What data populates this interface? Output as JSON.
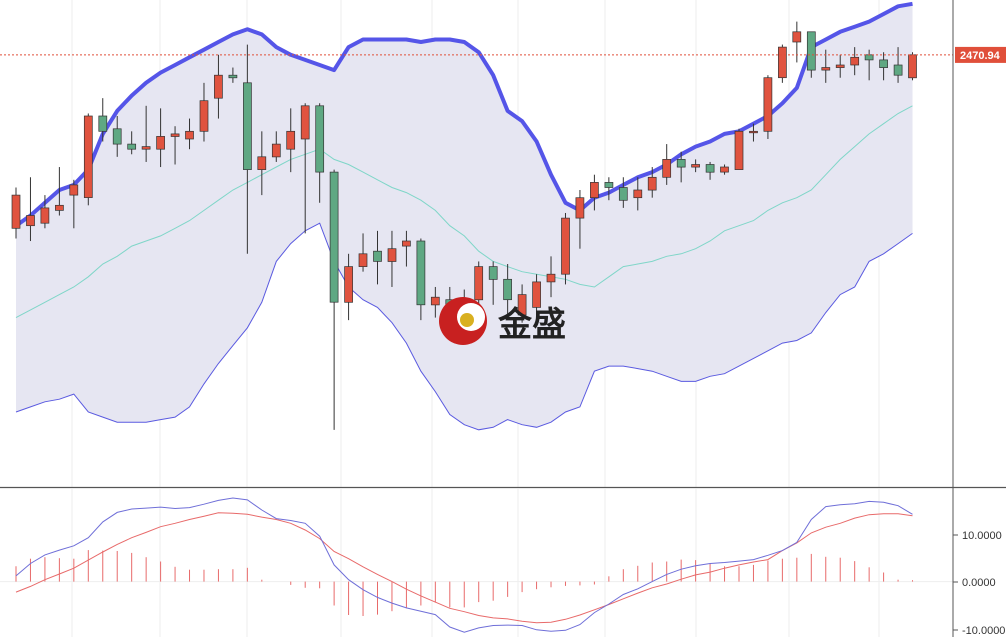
{
  "watermark": {
    "text": "金盛"
  },
  "price_tag": {
    "label": "2470.94",
    "value": 2470.94,
    "color": "#e04f3a"
  },
  "colors": {
    "up": "#e0533f",
    "down": "#5fa883",
    "band_fill": "#e6e6f2",
    "upper_band": "#5555e8",
    "lower_band": "#5a5ae0",
    "mid_band": "#7fd6c8",
    "macd_line": "#6f6fd8",
    "signal_line": "#e86a6a",
    "hist": "#e86a6a"
  },
  "chart_data": [
    {
      "type": "candlestick",
      "title": "",
      "xlabel": "",
      "ylabel": "",
      "ylim": [
        2301.6,
        2492.47
      ],
      "grid": true,
      "current_price": 2470.94,
      "candles": [
        [
          0,
          2403,
          2416,
          2419,
          2399
        ],
        [
          1,
          2404,
          2408,
          2423,
          2398
        ],
        [
          2,
          2405,
          2411,
          2416,
          2403
        ],
        [
          3,
          2410,
          2412,
          2427,
          2408
        ],
        [
          4,
          2416,
          2420,
          2422,
          2403
        ],
        [
          5,
          2415,
          2447,
          2448,
          2412
        ],
        [
          6,
          2447,
          2441,
          2454,
          2437
        ],
        [
          7,
          2442,
          2436,
          2447,
          2431
        ],
        [
          8,
          2436,
          2434,
          2441,
          2432
        ],
        [
          9,
          2434,
          2435,
          2451,
          2429
        ],
        [
          10,
          2434,
          2439,
          2450,
          2427
        ],
        [
          11,
          2439,
          2440,
          2443,
          2428
        ],
        [
          12,
          2438,
          2441,
          2446,
          2434
        ],
        [
          13,
          2441,
          2453,
          2460,
          2437
        ],
        [
          14,
          2454,
          2463,
          2471,
          2446
        ],
        [
          15,
          2463,
          2462,
          2466,
          2460
        ],
        [
          16,
          2460,
          2426,
          2475,
          2393
        ],
        [
          17,
          2426,
          2431,
          2441,
          2416
        ],
        [
          18,
          2431,
          2436,
          2441,
          2429
        ],
        [
          19,
          2434,
          2441,
          2450,
          2425
        ],
        [
          20,
          2438,
          2451,
          2452,
          2401
        ],
        [
          21,
          2451,
          2425,
          2452,
          2413
        ],
        [
          22,
          2425,
          2374,
          2426,
          2324
        ],
        [
          23,
          2374,
          2388,
          2393,
          2367
        ],
        [
          24,
          2388,
          2393,
          2401,
          2386
        ],
        [
          25,
          2394,
          2390,
          2402,
          2381
        ],
        [
          26,
          2390,
          2395,
          2402,
          2380
        ],
        [
          27,
          2396,
          2398,
          2402,
          2388
        ],
        [
          28,
          2398,
          2373,
          2399,
          2367
        ],
        [
          29,
          2373,
          2376,
          2380,
          2368
        ],
        [
          30,
          2375,
          2366,
          2380,
          2362
        ],
        [
          31,
          2366,
          2373,
          2379,
          2362
        ],
        [
          32,
          2375,
          2388,
          2390,
          2373
        ],
        [
          33,
          2388,
          2383,
          2390,
          2373
        ],
        [
          34,
          2383,
          2375,
          2389,
          2368
        ],
        [
          35,
          2369,
          2377,
          2381,
          2366
        ],
        [
          36,
          2372,
          2382,
          2385,
          2367
        ],
        [
          37,
          2382,
          2385,
          2392,
          2376
        ],
        [
          38,
          2385,
          2407,
          2409,
          2381
        ],
        [
          39,
          2407,
          2415,
          2418,
          2395
        ],
        [
          40,
          2415,
          2421,
          2424,
          2410
        ],
        [
          41,
          2421,
          2419,
          2423,
          2414
        ],
        [
          42,
          2419,
          2414,
          2423,
          2411
        ],
        [
          43,
          2415,
          2418,
          2423,
          2410
        ],
        [
          44,
          2418,
          2423,
          2427,
          2415
        ],
        [
          45,
          2423,
          2430,
          2436,
          2420
        ],
        [
          46,
          2430,
          2427,
          2433,
          2421
        ],
        [
          47,
          2427,
          2428,
          2430,
          2425
        ],
        [
          48,
          2428,
          2425,
          2429,
          2422
        ],
        [
          49,
          2425,
          2427,
          2428,
          2424
        ],
        [
          50,
          2426,
          2441,
          2442,
          2426
        ],
        [
          51,
          2441,
          2441,
          2444,
          2437
        ],
        [
          52,
          2441,
          2462,
          2463,
          2438
        ],
        [
          53,
          2462,
          2474,
          2475,
          2460
        ],
        [
          54,
          2476,
          2480,
          2484,
          2468
        ],
        [
          55,
          2480,
          2465,
          2480,
          2462
        ],
        [
          56,
          2465,
          2466,
          2473,
          2460
        ],
        [
          57,
          2466,
          2467,
          2471,
          2462
        ],
        [
          58,
          2467,
          2470,
          2474,
          2463
        ],
        [
          59,
          2471,
          2469,
          2473,
          2461
        ],
        [
          60,
          2469,
          2466,
          2472,
          2461
        ],
        [
          61,
          2467,
          2463,
          2474,
          2460
        ],
        [
          62,
          2462,
          2471,
          2472,
          2461
        ]
      ],
      "bollinger": {
        "upper": [
          2404,
          2408,
          2413,
          2418,
          2420,
          2426,
          2440,
          2449,
          2455,
          2460,
          2464,
          2467,
          2470,
          2473,
          2476,
          2479,
          2481,
          2479,
          2474,
          2471,
          2469,
          2467,
          2465,
          2474,
          2477,
          2477,
          2477,
          2477,
          2476,
          2477,
          2477,
          2476,
          2472,
          2463,
          2449,
          2445,
          2437,
          2424,
          2413,
          2410,
          2415,
          2417,
          2420,
          2423,
          2425,
          2428,
          2432,
          2435,
          2437,
          2440,
          2441,
          2444,
          2447,
          2452,
          2458,
          2474,
          2477,
          2480,
          2482,
          2484,
          2487,
          2490,
          2491
        ],
        "middle": [
          2368,
          2371,
          2374,
          2377,
          2380,
          2384,
          2389,
          2392,
          2396,
          2398,
          2400,
          2403,
          2406,
          2410,
          2414,
          2418,
          2421,
          2424,
          2427,
          2430,
          2432,
          2434,
          2430,
          2428,
          2425,
          2422,
          2419,
          2417,
          2414,
          2410,
          2404,
          2400,
          2394,
          2390,
          2388,
          2386,
          2385,
          2384,
          2383,
          2381,
          2380,
          2384,
          2388,
          2389,
          2390,
          2392,
          2393,
          2395,
          2398,
          2402,
          2404,
          2406,
          2410,
          2413,
          2415,
          2418,
          2424,
          2430,
          2435,
          2440,
          2444,
          2448,
          2451
        ],
        "lower": [
          2331,
          2333,
          2335,
          2336,
          2338,
          2331,
          2329,
          2327,
          2327,
          2327,
          2328,
          2329,
          2333,
          2342,
          2350,
          2357,
          2364,
          2374,
          2390,
          2397,
          2402,
          2405,
          2390,
          2380,
          2375,
          2372,
          2366,
          2358,
          2347,
          2339,
          2330,
          2326,
          2324,
          2325,
          2328,
          2326,
          2325,
          2327,
          2331,
          2333,
          2347,
          2349,
          2349,
          2348,
          2347,
          2345,
          2343,
          2343,
          2345,
          2346,
          2349,
          2352,
          2355,
          2358,
          2359,
          2362,
          2370,
          2377,
          2380,
          2390,
          2393,
          2397,
          2401
        ]
      }
    },
    {
      "type": "line",
      "title": "",
      "ylim": [
        -11.6,
        19.6
      ],
      "yticks": [
        "-10.0000",
        "0.0000",
        "10.0000"
      ],
      "grid": true,
      "series": [
        {
          "values": [
            1.2,
            3.8,
            5.6,
            6.6,
            7.5,
            9.2,
            12.5,
            14.5,
            15.2,
            15.4,
            15.6,
            15.3,
            15.5,
            16.2,
            17.0,
            17.5,
            17.1,
            15.0,
            13.2,
            12.8,
            12.2,
            9.5,
            3.5,
            0.4,
            -1.7,
            -3.3,
            -4.5,
            -5.5,
            -6.2,
            -6.9,
            -9.5,
            -10.6,
            -9.7,
            -9.2,
            -9.1,
            -9.2,
            -10.1,
            -10.4,
            -10.2,
            -9.0,
            -6.5,
            -4.7,
            -2.7,
            -1.5,
            0.0,
            1.5,
            2.6,
            3.3,
            3.8,
            4.0,
            4.3,
            4.6,
            5.5,
            6.5,
            8.2,
            13.0,
            15.7,
            16.1,
            16.3,
            16.8,
            16.6,
            15.9,
            14.1
          ]
        },
        {
          "values": [
            -2.2,
            -1.0,
            0.4,
            1.6,
            2.8,
            4.5,
            6.2,
            7.8,
            9.2,
            10.3,
            11.5,
            12.2,
            13.0,
            13.7,
            14.4,
            14.3,
            14.1,
            13.5,
            13.0,
            12.2,
            10.8,
            9.0,
            6.3,
            4.8,
            3.1,
            1.5,
            0.0,
            -1.6,
            -3.0,
            -4.3,
            -5.6,
            -6.3,
            -7.1,
            -7.6,
            -7.8,
            -8.3,
            -8.6,
            -8.5,
            -7.9,
            -7.0,
            -5.9,
            -4.8,
            -3.6,
            -2.4,
            -1.3,
            -0.5,
            0.5,
            1.4,
            2.0,
            2.8,
            3.5,
            4.1,
            4.6,
            6.5,
            8.1,
            10.2,
            11.4,
            12.2,
            13.3,
            14.0,
            14.2,
            14.2,
            13.8
          ]
        }
      ],
      "histogram": [
        3.2,
        4.8,
        5.1,
        4.9,
        4.8,
        6.6,
        6.5,
        6.4,
        6.0,
        5.1,
        4.2,
        3.1,
        2.5,
        2.5,
        2.6,
        2.6,
        2.9,
        0.4,
        0.0,
        -0.7,
        -1.3,
        -1.4,
        -5.0,
        -7.0,
        -7.2,
        -6.9,
        -6.2,
        -5.6,
        -5.0,
        -4.4,
        -5.4,
        -5.4,
        -4.3,
        -4.0,
        -3.2,
        -2.2,
        -1.6,
        -1.2,
        -0.9,
        -0.8,
        -0.6,
        1.1,
        2.6,
        3.3,
        4.0,
        4.2,
        4.6,
        4.5,
        3.8,
        3.2,
        3.2,
        3.5,
        4.4,
        4.8,
        5.0,
        5.8,
        5.2,
        5.0,
        4.3,
        3.0,
        1.9,
        0.4,
        0.3
      ]
    }
  ]
}
